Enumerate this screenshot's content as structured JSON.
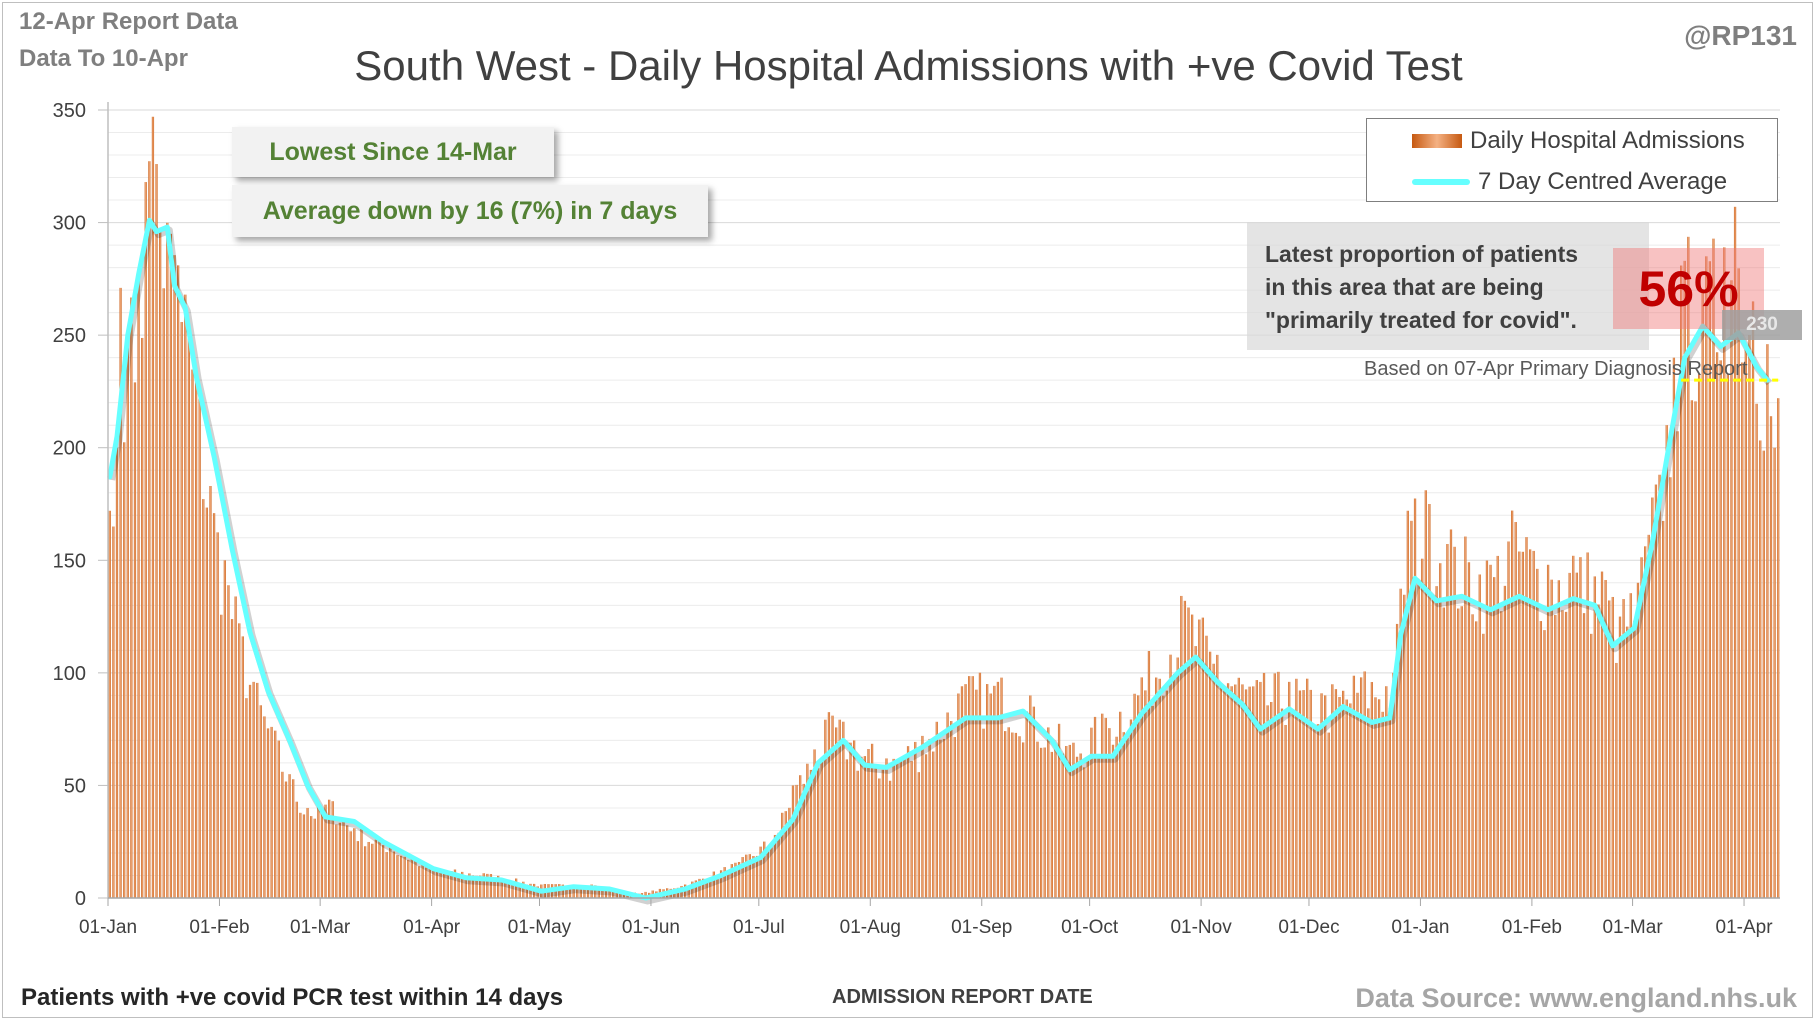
{
  "header": {
    "report_line1": "12-Apr Report Data",
    "report_line2": "Data To 10-Apr",
    "handle": "@RP131"
  },
  "footer": {
    "left_note": "Patients with +ve covid PCR test within 14 days",
    "x_axis_title": "ADMISSION REPORT DATE",
    "source": "Data Source: www.england.nhs.uk"
  },
  "callouts": {
    "lowest": "Lowest Since 14-Mar",
    "average": "Average down by 16 (7%) in 7 days"
  },
  "proportion": {
    "text": "Latest proportion of patients in this area that are being \"primarily treated for covid\".",
    "value": "56%",
    "note": "Based on 07-Apr Primary Diagnosis Report",
    "latest_label": "230"
  },
  "colors": {
    "bar_dark": "#c65911",
    "bar_light": "#f4b183",
    "average_line": "#66ffff",
    "reference_line": "#ffff00",
    "callout_text": "#548235",
    "proportion_value": "#c00000"
  },
  "chart_data": {
    "type": "bar",
    "title": "South West - Daily Hospital Admissions with +ve Covid Test",
    "xlabel": "ADMISSION REPORT DATE",
    "ylabel": "",
    "ylim": [
      0,
      350
    ],
    "y_ticks": [
      0,
      50,
      100,
      150,
      200,
      250,
      300,
      350
    ],
    "x_range": [
      "2021-01-01",
      "2022-04-10"
    ],
    "x_ticks": [
      {
        "date": "2021-01-01",
        "label": "01-Jan"
      },
      {
        "date": "2021-02-01",
        "label": "01-Feb"
      },
      {
        "date": "2021-03-01",
        "label": "01-Mar"
      },
      {
        "date": "2021-04-01",
        "label": "01-Apr"
      },
      {
        "date": "2021-05-01",
        "label": "01-May"
      },
      {
        "date": "2021-06-01",
        "label": "01-Jun"
      },
      {
        "date": "2021-07-01",
        "label": "01-Jul"
      },
      {
        "date": "2021-08-01",
        "label": "01-Aug"
      },
      {
        "date": "2021-09-01",
        "label": "01-Sep"
      },
      {
        "date": "2021-10-01",
        "label": "01-Oct"
      },
      {
        "date": "2021-11-01",
        "label": "01-Nov"
      },
      {
        "date": "2021-12-01",
        "label": "01-Dec"
      },
      {
        "date": "2022-01-01",
        "label": "01-Jan"
      },
      {
        "date": "2022-02-01",
        "label": "01-Feb"
      },
      {
        "date": "2022-03-01",
        "label": "01-Mar"
      },
      {
        "date": "2022-04-01",
        "label": "01-Apr"
      }
    ],
    "grid": true,
    "legend_position": "top-right",
    "series": [
      {
        "name": "Daily Hospital Admissions",
        "kind": "bar",
        "note": "daily values; key points read off the chart, intermediate days follow the envelope",
        "points": [
          {
            "date": "2021-01-01",
            "value": 172
          },
          {
            "date": "2021-01-02",
            "value": 165
          },
          {
            "date": "2021-01-03",
            "value": 200
          },
          {
            "date": "2021-01-04",
            "value": 271
          },
          {
            "date": "2021-01-06",
            "value": 248
          },
          {
            "date": "2021-01-09",
            "value": 275
          },
          {
            "date": "2021-01-11",
            "value": 318
          },
          {
            "date": "2021-01-13",
            "value": 347
          },
          {
            "date": "2021-01-14",
            "value": 326
          },
          {
            "date": "2021-01-18",
            "value": 295
          },
          {
            "date": "2021-01-20",
            "value": 281
          },
          {
            "date": "2021-01-22",
            "value": 268
          },
          {
            "date": "2021-01-26",
            "value": 222
          },
          {
            "date": "2021-01-29",
            "value": 183
          },
          {
            "date": "2021-02-02",
            "value": 150
          },
          {
            "date": "2021-02-06",
            "value": 122
          },
          {
            "date": "2021-02-10",
            "value": 96
          },
          {
            "date": "2021-02-15",
            "value": 76
          },
          {
            "date": "2021-02-20",
            "value": 55
          },
          {
            "date": "2021-02-25",
            "value": 40
          },
          {
            "date": "2021-03-04",
            "value": 43
          },
          {
            "date": "2021-03-10",
            "value": 31
          },
          {
            "date": "2021-03-20",
            "value": 24
          },
          {
            "date": "2021-04-01",
            "value": 13
          },
          {
            "date": "2021-04-15",
            "value": 11
          },
          {
            "date": "2021-05-01",
            "value": 6
          },
          {
            "date": "2021-05-15",
            "value": 6
          },
          {
            "date": "2021-05-28",
            "value": 2
          },
          {
            "date": "2021-06-10",
            "value": 6
          },
          {
            "date": "2021-06-25",
            "value": 16
          },
          {
            "date": "2021-07-05",
            "value": 28
          },
          {
            "date": "2021-07-10",
            "value": 50
          },
          {
            "date": "2021-07-16",
            "value": 66
          },
          {
            "date": "2021-07-21",
            "value": 81
          },
          {
            "date": "2021-07-27",
            "value": 70
          },
          {
            "date": "2021-08-05",
            "value": 62
          },
          {
            "date": "2021-08-15",
            "value": 72
          },
          {
            "date": "2021-08-27",
            "value": 95
          },
          {
            "date": "2021-09-05",
            "value": 96
          },
          {
            "date": "2021-09-15",
            "value": 85
          },
          {
            "date": "2021-09-25",
            "value": 68
          },
          {
            "date": "2021-10-05",
            "value": 80
          },
          {
            "date": "2021-10-15",
            "value": 98
          },
          {
            "date": "2021-10-27",
            "value": 132
          },
          {
            "date": "2021-11-05",
            "value": 108
          },
          {
            "date": "2021-11-15",
            "value": 94
          },
          {
            "date": "2021-11-25",
            "value": 96
          },
          {
            "date": "2021-12-05",
            "value": 90
          },
          {
            "date": "2021-12-15",
            "value": 98
          },
          {
            "date": "2021-12-24",
            "value": 100
          },
          {
            "date": "2021-12-28",
            "value": 172
          },
          {
            "date": "2022-01-03",
            "value": 175
          },
          {
            "date": "2022-01-10",
            "value": 156
          },
          {
            "date": "2022-01-20",
            "value": 148
          },
          {
            "date": "2022-01-27",
            "value": 167
          },
          {
            "date": "2022-02-05",
            "value": 148
          },
          {
            "date": "2022-02-12",
            "value": 152
          },
          {
            "date": "2022-02-20",
            "value": 145
          },
          {
            "date": "2022-02-25",
            "value": 125
          },
          {
            "date": "2022-03-02",
            "value": 140
          },
          {
            "date": "2022-03-08",
            "value": 188
          },
          {
            "date": "2022-03-12",
            "value": 240
          },
          {
            "date": "2022-03-15",
            "value": 283
          },
          {
            "date": "2022-03-20",
            "value": 270
          },
          {
            "date": "2022-03-26",
            "value": 289
          },
          {
            "date": "2022-03-29",
            "value": 307
          },
          {
            "date": "2022-04-03",
            "value": 265
          },
          {
            "date": "2022-04-07",
            "value": 246
          },
          {
            "date": "2022-04-08",
            "value": 214
          },
          {
            "date": "2022-04-09",
            "value": 200
          },
          {
            "date": "2022-04-10",
            "value": 222
          }
        ]
      },
      {
        "name": "7 Day Centred Average",
        "kind": "line",
        "points": [
          {
            "date": "2021-01-01",
            "value": 187
          },
          {
            "date": "2021-01-03",
            "value": 205
          },
          {
            "date": "2021-01-06",
            "value": 250
          },
          {
            "date": "2021-01-09",
            "value": 277
          },
          {
            "date": "2021-01-12",
            "value": 301
          },
          {
            "date": "2021-01-14",
            "value": 296
          },
          {
            "date": "2021-01-17",
            "value": 298
          },
          {
            "date": "2021-01-19",
            "value": 272
          },
          {
            "date": "2021-01-22",
            "value": 262
          },
          {
            "date": "2021-01-25",
            "value": 232
          },
          {
            "date": "2021-01-30",
            "value": 196
          },
          {
            "date": "2021-02-04",
            "value": 155
          },
          {
            "date": "2021-02-09",
            "value": 118
          },
          {
            "date": "2021-02-14",
            "value": 92
          },
          {
            "date": "2021-02-20",
            "value": 70
          },
          {
            "date": "2021-02-25",
            "value": 50
          },
          {
            "date": "2021-03-02",
            "value": 36
          },
          {
            "date": "2021-03-10",
            "value": 34
          },
          {
            "date": "2021-03-18",
            "value": 25
          },
          {
            "date": "2021-03-25",
            "value": 19
          },
          {
            "date": "2021-04-01",
            "value": 13
          },
          {
            "date": "2021-04-10",
            "value": 9
          },
          {
            "date": "2021-04-20",
            "value": 8
          },
          {
            "date": "2021-05-01",
            "value": 3
          },
          {
            "date": "2021-05-10",
            "value": 5
          },
          {
            "date": "2021-05-20",
            "value": 4
          },
          {
            "date": "2021-05-30",
            "value": 0
          },
          {
            "date": "2021-06-10",
            "value": 4
          },
          {
            "date": "2021-06-20",
            "value": 10
          },
          {
            "date": "2021-07-01",
            "value": 18
          },
          {
            "date": "2021-07-10",
            "value": 35
          },
          {
            "date": "2021-07-17",
            "value": 60
          },
          {
            "date": "2021-07-24",
            "value": 70
          },
          {
            "date": "2021-07-30",
            "value": 59
          },
          {
            "date": "2021-08-05",
            "value": 58
          },
          {
            "date": "2021-08-15",
            "value": 67
          },
          {
            "date": "2021-08-27",
            "value": 80
          },
          {
            "date": "2021-09-05",
            "value": 80
          },
          {
            "date": "2021-09-12",
            "value": 83
          },
          {
            "date": "2021-09-20",
            "value": 70
          },
          {
            "date": "2021-09-25",
            "value": 57
          },
          {
            "date": "2021-10-01",
            "value": 63
          },
          {
            "date": "2021-10-07",
            "value": 63
          },
          {
            "date": "2021-10-15",
            "value": 82
          },
          {
            "date": "2021-10-25",
            "value": 100
          },
          {
            "date": "2021-10-30",
            "value": 107
          },
          {
            "date": "2021-11-05",
            "value": 96
          },
          {
            "date": "2021-11-12",
            "value": 86
          },
          {
            "date": "2021-11-17",
            "value": 75
          },
          {
            "date": "2021-11-25",
            "value": 84
          },
          {
            "date": "2021-12-03",
            "value": 75
          },
          {
            "date": "2021-12-10",
            "value": 85
          },
          {
            "date": "2021-12-18",
            "value": 78
          },
          {
            "date": "2021-12-23",
            "value": 80
          },
          {
            "date": "2021-12-26",
            "value": 117
          },
          {
            "date": "2021-12-30",
            "value": 142
          },
          {
            "date": "2022-01-05",
            "value": 132
          },
          {
            "date": "2022-01-12",
            "value": 134
          },
          {
            "date": "2022-01-20",
            "value": 128
          },
          {
            "date": "2022-01-28",
            "value": 134
          },
          {
            "date": "2022-02-05",
            "value": 128
          },
          {
            "date": "2022-02-12",
            "value": 133
          },
          {
            "date": "2022-02-18",
            "value": 130
          },
          {
            "date": "2022-02-23",
            "value": 112
          },
          {
            "date": "2022-03-01",
            "value": 120
          },
          {
            "date": "2022-03-06",
            "value": 158
          },
          {
            "date": "2022-03-10",
            "value": 195
          },
          {
            "date": "2022-03-15",
            "value": 240
          },
          {
            "date": "2022-03-20",
            "value": 254
          },
          {
            "date": "2022-03-25",
            "value": 245
          },
          {
            "date": "2022-03-30",
            "value": 251
          },
          {
            "date": "2022-04-04",
            "value": 236
          },
          {
            "date": "2022-04-07",
            "value": 230
          }
        ]
      }
    ],
    "reference_line": {
      "value": 230,
      "from": "2022-03-14",
      "to": "2022-04-10"
    }
  }
}
